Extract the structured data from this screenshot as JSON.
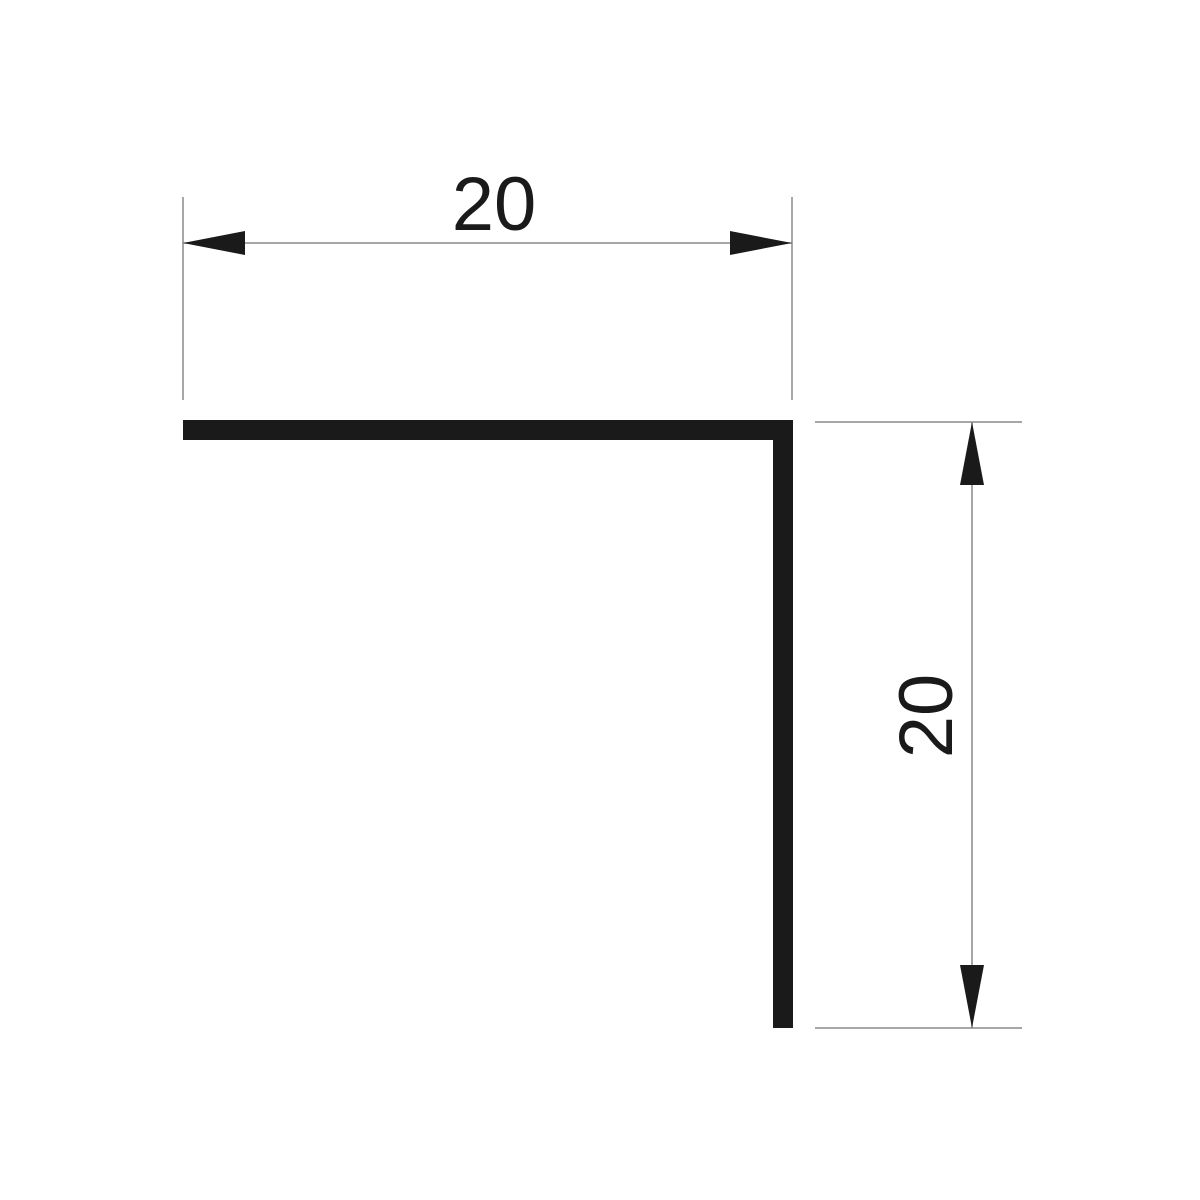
{
  "diagram": {
    "type": "angle-profile-cross-section",
    "dimensions": {
      "horizontal": {
        "label": "20"
      },
      "vertical": {
        "label": "20"
      }
    },
    "colors": {
      "background": "#ffffff",
      "profile": "#1a1a1a",
      "dimension_line": "#8a8a8a",
      "arrow": "#1a1a1a",
      "text": "#1a1a1a"
    }
  }
}
